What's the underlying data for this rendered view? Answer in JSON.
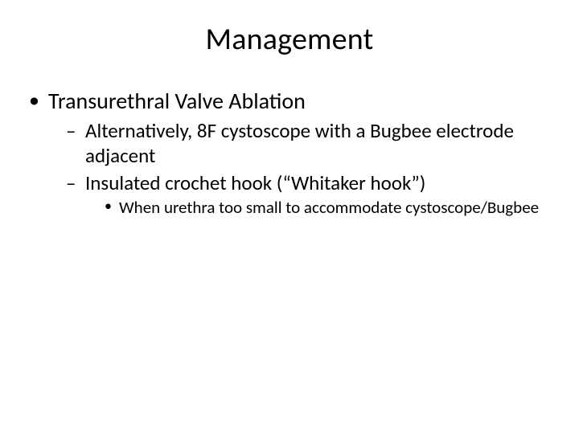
{
  "slide": {
    "title": "Management",
    "title_fontsize": 38,
    "background_color": "#ffffff",
    "text_color": "#000000",
    "font_family": "Calibri",
    "bullets": {
      "lvl1": [
        {
          "text": "Transurethral Valve Ablation",
          "fontsize": 28,
          "lvl2": [
            {
              "text": "Alternatively, 8F cystoscope with a Bugbee electrode adjacent",
              "fontsize": 25
            },
            {
              "text": "Insulated crochet hook (“Whitaker hook”)",
              "fontsize": 25,
              "lvl3": [
                {
                  "text": "When urethra too small to accommodate cystoscope/Bugbee",
                  "fontsize": 21
                }
              ]
            }
          ]
        }
      ]
    }
  }
}
